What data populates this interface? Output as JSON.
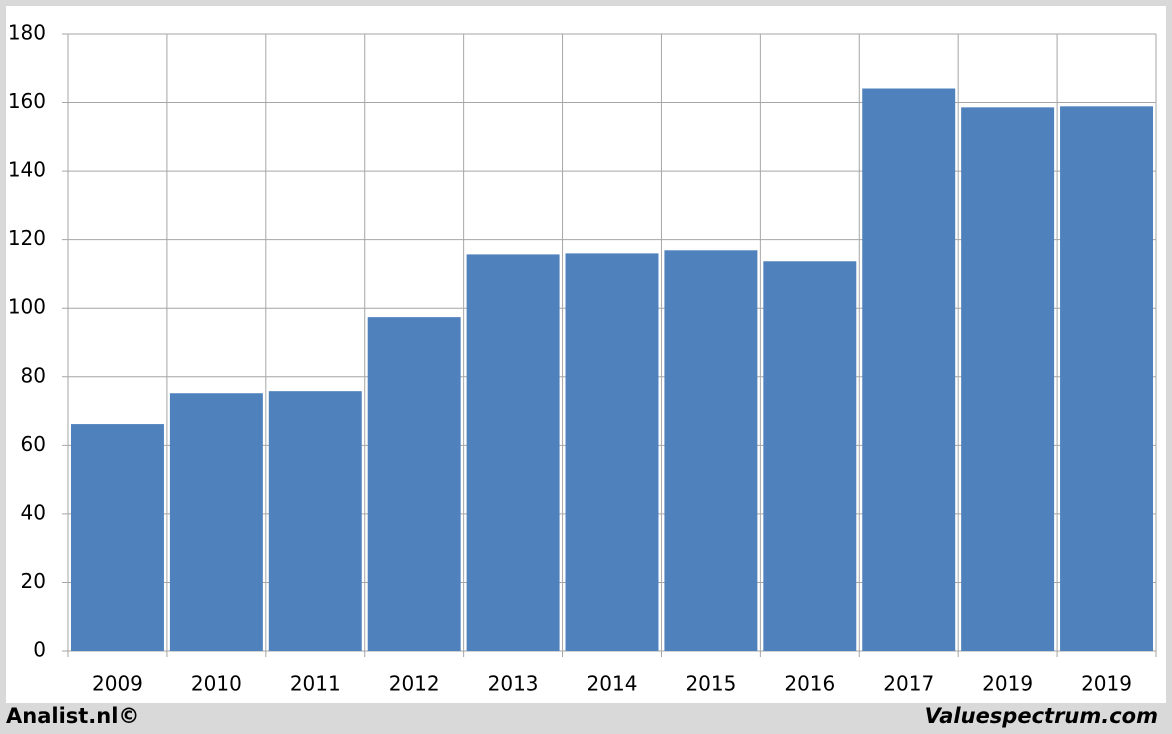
{
  "chart_data": {
    "type": "bar",
    "categories": [
      "2009",
      "2010",
      "2011",
      "2012",
      "2013",
      "2014",
      "2015",
      "2016",
      "2017",
      "2019",
      "2019"
    ],
    "values": [
      66.2,
      75.2,
      75.8,
      97.4,
      115.7,
      116.0,
      116.9,
      113.7,
      164.1,
      158.6,
      158.9
    ],
    "color": "#4f81bd",
    "ylim": [
      0,
      180
    ],
    "yticks": [
      0,
      20,
      40,
      60,
      80,
      100,
      120,
      140,
      160,
      180
    ],
    "grid": true
  },
  "footer": {
    "left": "Analist.nl©",
    "right": "Valuespectrum.com"
  }
}
